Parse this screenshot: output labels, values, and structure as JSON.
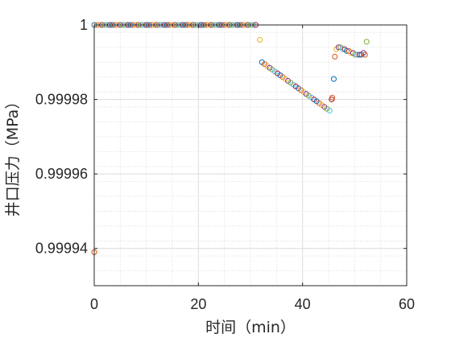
{
  "chart_data": {
    "type": "scatter",
    "title": "",
    "xlabel": "时间（min）",
    "ylabel": "井口压力（MPa）",
    "xlim": [
      0,
      60
    ],
    "ylim": [
      0.99993,
      1.0
    ],
    "xticks": [
      0,
      20,
      40,
      60
    ],
    "xtick_labels": [
      "0",
      "20",
      "40",
      "60"
    ],
    "yticks": [
      0.99994,
      0.99996,
      0.99998,
      1.0
    ],
    "ytick_labels": [
      "0.99994",
      "0.99996",
      "0.99998",
      "1"
    ],
    "grid": true,
    "minor_grid": true,
    "marker": "open-circle",
    "series": [
      {
        "color": "#0072BD"
      },
      {
        "color": "#D95319"
      },
      {
        "color": "#EDB120"
      },
      {
        "color": "#7E2F8E"
      },
      {
        "color": "#77AC30"
      },
      {
        "color": "#4DBEEE"
      },
      {
        "color": "#A2142F"
      }
    ],
    "points": [
      {
        "x": 0.0,
        "y": 1.0,
        "s": 0
      },
      {
        "x": 0.0,
        "y": 0.999939,
        "s": 2
      },
      {
        "x": 0.0,
        "y": 0.999939,
        "s": 1
      },
      {
        "x": 0.5,
        "y": 1.0,
        "s": 1
      },
      {
        "x": 1.0,
        "y": 1.0,
        "s": 2
      },
      {
        "x": 1.5,
        "y": 1.0,
        "s": 3
      },
      {
        "x": 2.0,
        "y": 1.0,
        "s": 4
      },
      {
        "x": 2.5,
        "y": 1.0,
        "s": 5
      },
      {
        "x": 3.0,
        "y": 1.0,
        "s": 6
      },
      {
        "x": 3.5,
        "y": 1.0,
        "s": 0
      },
      {
        "x": 4.0,
        "y": 1.0,
        "s": 1
      },
      {
        "x": 4.5,
        "y": 1.0,
        "s": 2
      },
      {
        "x": 5.0,
        "y": 1.0,
        "s": 3
      },
      {
        "x": 5.5,
        "y": 1.0,
        "s": 4
      },
      {
        "x": 6.0,
        "y": 1.0,
        "s": 5
      },
      {
        "x": 6.5,
        "y": 1.0,
        "s": 6
      },
      {
        "x": 7.0,
        "y": 1.0,
        "s": 0
      },
      {
        "x": 7.5,
        "y": 1.0,
        "s": 1
      },
      {
        "x": 8.0,
        "y": 1.0,
        "s": 2
      },
      {
        "x": 8.5,
        "y": 1.0,
        "s": 3
      },
      {
        "x": 9.0,
        "y": 1.0,
        "s": 4
      },
      {
        "x": 9.5,
        "y": 1.0,
        "s": 5
      },
      {
        "x": 10.0,
        "y": 1.0,
        "s": 6
      },
      {
        "x": 10.5,
        "y": 1.0,
        "s": 0
      },
      {
        "x": 11.0,
        "y": 1.0,
        "s": 1
      },
      {
        "x": 11.5,
        "y": 1.0,
        "s": 2
      },
      {
        "x": 12.0,
        "y": 1.0,
        "s": 3
      },
      {
        "x": 12.5,
        "y": 1.0,
        "s": 4
      },
      {
        "x": 13.0,
        "y": 1.0,
        "s": 5
      },
      {
        "x": 13.5,
        "y": 1.0,
        "s": 6
      },
      {
        "x": 14.0,
        "y": 1.0,
        "s": 0
      },
      {
        "x": 14.5,
        "y": 1.0,
        "s": 1
      },
      {
        "x": 15.0,
        "y": 1.0,
        "s": 2
      },
      {
        "x": 15.5,
        "y": 1.0,
        "s": 3
      },
      {
        "x": 16.0,
        "y": 1.0,
        "s": 4
      },
      {
        "x": 16.5,
        "y": 1.0,
        "s": 5
      },
      {
        "x": 17.0,
        "y": 1.0,
        "s": 6
      },
      {
        "x": 17.5,
        "y": 1.0,
        "s": 0
      },
      {
        "x": 18.0,
        "y": 1.0,
        "s": 1
      },
      {
        "x": 18.5,
        "y": 1.0,
        "s": 2
      },
      {
        "x": 19.0,
        "y": 1.0,
        "s": 3
      },
      {
        "x": 19.5,
        "y": 1.0,
        "s": 4
      },
      {
        "x": 20.0,
        "y": 1.0,
        "s": 5
      },
      {
        "x": 20.5,
        "y": 1.0,
        "s": 6
      },
      {
        "x": 21.0,
        "y": 1.0,
        "s": 0
      },
      {
        "x": 21.5,
        "y": 1.0,
        "s": 1
      },
      {
        "x": 22.0,
        "y": 1.0,
        "s": 2
      },
      {
        "x": 22.5,
        "y": 1.0,
        "s": 3
      },
      {
        "x": 23.0,
        "y": 1.0,
        "s": 4
      },
      {
        "x": 23.5,
        "y": 1.0,
        "s": 5
      },
      {
        "x": 24.0,
        "y": 1.0,
        "s": 6
      },
      {
        "x": 24.5,
        "y": 1.0,
        "s": 0
      },
      {
        "x": 25.0,
        "y": 1.0,
        "s": 1
      },
      {
        "x": 25.5,
        "y": 1.0,
        "s": 2
      },
      {
        "x": 26.0,
        "y": 1.0,
        "s": 3
      },
      {
        "x": 26.5,
        "y": 1.0,
        "s": 4
      },
      {
        "x": 27.0,
        "y": 1.0,
        "s": 5
      },
      {
        "x": 27.5,
        "y": 1.0,
        "s": 6
      },
      {
        "x": 28.0,
        "y": 1.0,
        "s": 0
      },
      {
        "x": 28.5,
        "y": 1.0,
        "s": 1
      },
      {
        "x": 29.0,
        "y": 1.0,
        "s": 2
      },
      {
        "x": 29.5,
        "y": 1.0,
        "s": 3
      },
      {
        "x": 30.0,
        "y": 1.0,
        "s": 4
      },
      {
        "x": 30.5,
        "y": 1.0,
        "s": 5
      },
      {
        "x": 31.0,
        "y": 1.0,
        "s": 6
      },
      {
        "x": 31.8,
        "y": 0.999996,
        "s": 2
      },
      {
        "x": 32.2,
        "y": 0.99999,
        "s": 0
      },
      {
        "x": 32.7,
        "y": 0.9999895,
        "s": 1
      },
      {
        "x": 33.2,
        "y": 0.999989,
        "s": 2
      },
      {
        "x": 33.7,
        "y": 0.9999885,
        "s": 3
      },
      {
        "x": 34.2,
        "y": 0.999988,
        "s": 4
      },
      {
        "x": 34.7,
        "y": 0.9999875,
        "s": 5
      },
      {
        "x": 35.2,
        "y": 0.999987,
        "s": 6
      },
      {
        "x": 35.7,
        "y": 0.9999865,
        "s": 0
      },
      {
        "x": 36.2,
        "y": 0.999986,
        "s": 1
      },
      {
        "x": 36.7,
        "y": 0.9999855,
        "s": 2
      },
      {
        "x": 37.2,
        "y": 0.999985,
        "s": 3
      },
      {
        "x": 37.7,
        "y": 0.9999845,
        "s": 4
      },
      {
        "x": 38.2,
        "y": 0.999984,
        "s": 5
      },
      {
        "x": 38.7,
        "y": 0.9999835,
        "s": 6
      },
      {
        "x": 39.2,
        "y": 0.999983,
        "s": 0
      },
      {
        "x": 39.7,
        "y": 0.9999825,
        "s": 1
      },
      {
        "x": 40.2,
        "y": 0.999982,
        "s": 2
      },
      {
        "x": 40.7,
        "y": 0.9999815,
        "s": 3
      },
      {
        "x": 41.2,
        "y": 0.999981,
        "s": 4
      },
      {
        "x": 41.7,
        "y": 0.9999805,
        "s": 5
      },
      {
        "x": 42.2,
        "y": 0.99998,
        "s": 6
      },
      {
        "x": 42.7,
        "y": 0.9999795,
        "s": 0
      },
      {
        "x": 43.2,
        "y": 0.999979,
        "s": 1
      },
      {
        "x": 43.7,
        "y": 0.9999785,
        "s": 2
      },
      {
        "x": 44.2,
        "y": 0.999978,
        "s": 3
      },
      {
        "x": 44.7,
        "y": 0.9999775,
        "s": 4
      },
      {
        "x": 45.2,
        "y": 0.999977,
        "s": 5
      },
      {
        "x": 45.6,
        "y": 0.99998,
        "s": 6
      },
      {
        "x": 45.7,
        "y": 0.9999805,
        "s": 1
      },
      {
        "x": 46.0,
        "y": 0.9999855,
        "s": 0
      },
      {
        "x": 46.2,
        "y": 0.9999915,
        "s": 1
      },
      {
        "x": 46.5,
        "y": 0.9999935,
        "s": 2
      },
      {
        "x": 46.9,
        "y": 0.999994,
        "s": 3
      },
      {
        "x": 47.3,
        "y": 0.999994,
        "s": 4
      },
      {
        "x": 47.7,
        "y": 0.9999935,
        "s": 5
      },
      {
        "x": 48.1,
        "y": 0.9999935,
        "s": 6
      },
      {
        "x": 48.5,
        "y": 0.999993,
        "s": 0
      },
      {
        "x": 48.9,
        "y": 0.999993,
        "s": 1
      },
      {
        "x": 49.3,
        "y": 0.9999925,
        "s": 2
      },
      {
        "x": 49.7,
        "y": 0.9999925,
        "s": 3
      },
      {
        "x": 50.1,
        "y": 0.999992,
        "s": 4
      },
      {
        "x": 50.5,
        "y": 0.999992,
        "s": 5
      },
      {
        "x": 50.9,
        "y": 0.999992,
        "s": 6
      },
      {
        "x": 51.3,
        "y": 0.999992,
        "s": 0
      },
      {
        "x": 51.7,
        "y": 0.9999925,
        "s": 3
      },
      {
        "x": 52.0,
        "y": 0.999992,
        "s": 1
      },
      {
        "x": 52.3,
        "y": 0.9999955,
        "s": 4
      }
    ]
  }
}
